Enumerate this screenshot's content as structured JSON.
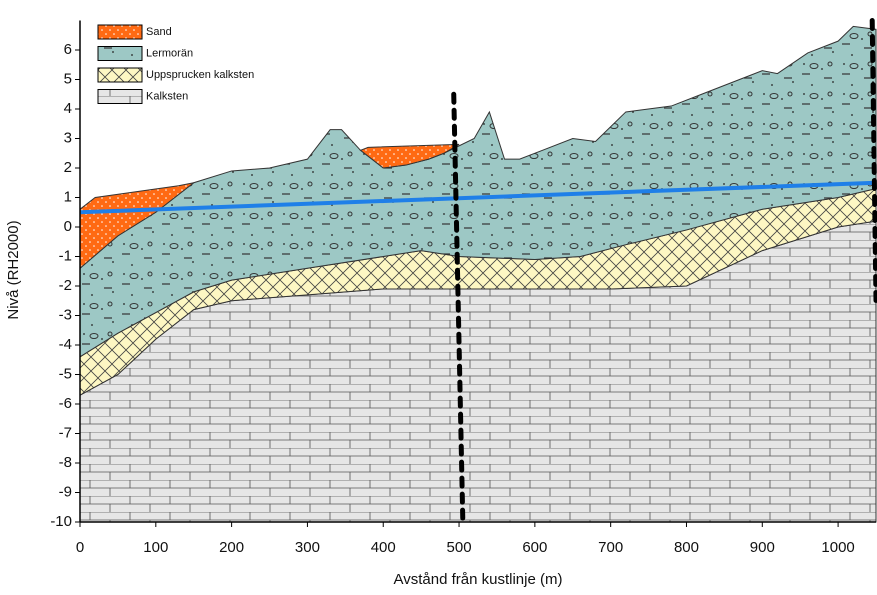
{
  "chart_data": {
    "type": "cross-section",
    "xlabel": "Avstånd från kustlinje (m)",
    "ylabel": "Nivå (RH2000)",
    "xlim": [
      0,
      1050
    ],
    "ylim": [
      -10,
      7
    ],
    "xticks": [
      0,
      100,
      200,
      300,
      400,
      500,
      600,
      700,
      800,
      900,
      1000
    ],
    "yticks": [
      -10,
      -9,
      -8,
      -7,
      -6,
      -5,
      -4,
      -3,
      -2,
      -1,
      0,
      1,
      2,
      3,
      4,
      5,
      6
    ],
    "series": [
      {
        "name": "Sand",
        "color": "#ff6a13",
        "x": [
          0,
          0,
          20,
          130,
          150,
          100,
          50,
          null,
          370,
          380,
          500,
          480,
          460,
          430,
          400
        ],
        "y": [
          -1.4,
          0.6,
          1.0,
          1.4,
          1.5,
          0.5,
          -0.3,
          null,
          2.6,
          2.7,
          2.8,
          2.5,
          2.3,
          2.1,
          2.0
        ]
      },
      {
        "name": "Lermorän",
        "color": "#9dc8c5",
        "x": [
          0,
          50,
          100,
          150,
          200,
          250,
          300,
          330,
          345,
          370,
          400,
          430,
          460,
          480,
          520,
          540,
          560,
          580,
          610,
          650,
          680,
          720,
          780,
          820,
          870,
          900,
          920,
          960,
          1000,
          1020,
          1050,
          1050,
          1000,
          900,
          800,
          720,
          660,
          600,
          500,
          450,
          400,
          300,
          200,
          150,
          100,
          50,
          0
        ],
        "y": [
          -1.4,
          -0.3,
          0.5,
          1.5,
          1.9,
          2.0,
          2.3,
          3.3,
          3.3,
          2.6,
          2.0,
          2.1,
          2.3,
          2.5,
          3.0,
          3.9,
          2.3,
          2.3,
          2.6,
          3.0,
          2.9,
          3.9,
          4.1,
          4.5,
          5.0,
          5.3,
          5.2,
          5.9,
          6.3,
          6.8,
          6.7,
          1.3,
          1.0,
          0.6,
          -0.1,
          -0.6,
          -1.0,
          -1.1,
          -1.0,
          -0.8,
          -1.0,
          -1.4,
          -1.8,
          -2.2,
          -2.9,
          -3.6,
          -4.4
        ]
      },
      {
        "name": "Uppsprucken kalksten",
        "color": "#fdf7c3",
        "x": [
          0,
          50,
          100,
          150,
          200,
          300,
          400,
          450,
          500,
          600,
          660,
          720,
          800,
          900,
          1000,
          1050,
          1050,
          1000,
          900,
          800,
          700,
          600,
          500,
          400,
          300,
          250,
          200,
          150,
          100,
          50,
          0
        ],
        "y": [
          -4.4,
          -3.6,
          -2.9,
          -2.2,
          -1.8,
          -1.4,
          -1.0,
          -0.8,
          -1.0,
          -1.1,
          -1.0,
          -0.6,
          -0.1,
          0.6,
          1.0,
          1.3,
          0.2,
          0.0,
          -0.8,
          -2.0,
          -2.1,
          -2.1,
          -2.1,
          -2.1,
          -2.3,
          -2.4,
          -2.5,
          -2.8,
          -3.8,
          -5.0,
          -5.7
        ]
      },
      {
        "name": "Kalksten",
        "color": "#e6e6e6",
        "x": [
          0,
          50,
          100,
          150,
          200,
          250,
          300,
          400,
          500,
          600,
          700,
          800,
          900,
          1000,
          1050,
          1050,
          0
        ],
        "y": [
          -5.7,
          -5.0,
          -3.8,
          -2.8,
          -2.5,
          -2.4,
          -2.3,
          -2.1,
          -2.1,
          -2.1,
          -2.1,
          -2.0,
          -0.8,
          0.0,
          0.2,
          -10,
          -10
        ]
      }
    ],
    "lines": [
      {
        "color": "#1f7fe8",
        "dash": false,
        "x": [
          0,
          1050
        ],
        "y": [
          0.5,
          1.5
        ]
      },
      {
        "color": "#000000",
        "dash": true,
        "x": [
          493,
          505
        ],
        "y": [
          4.5,
          -10
        ]
      },
      {
        "color": "#000000",
        "dash": true,
        "x": [
          1045,
          1050
        ],
        "y": [
          7,
          -2.5
        ]
      }
    ]
  }
}
